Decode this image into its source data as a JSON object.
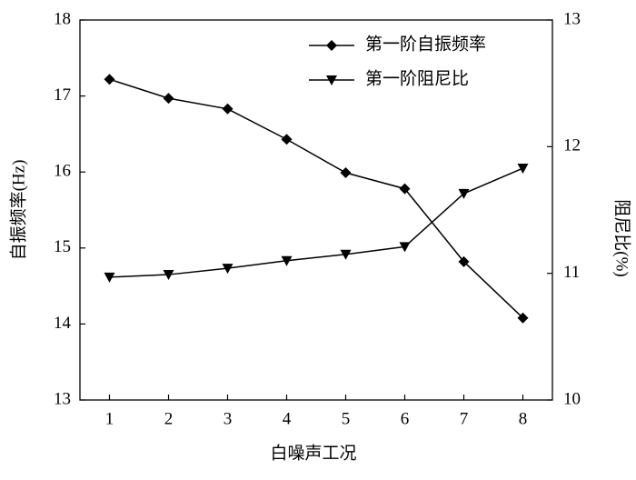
{
  "chart_data": {
    "type": "line",
    "x_label": "白噪声工况",
    "y_label": "自振频率(Hz)",
    "y2_label": "阻尼比(%)",
    "x": [
      1,
      2,
      3,
      4,
      5,
      6,
      7,
      8
    ],
    "xlim": [
      0.5,
      8.5
    ],
    "xticks": [
      1,
      2,
      3,
      4,
      5,
      6,
      7,
      8
    ],
    "ylim": [
      13,
      18
    ],
    "yticks": [
      13,
      14,
      15,
      16,
      17,
      18
    ],
    "y2lim": [
      10,
      13
    ],
    "y2ticks": [
      10,
      11,
      12,
      13
    ],
    "legend": "top-right",
    "series": [
      {
        "name": "第一阶自振频率",
        "color": "#000000",
        "marker": "diamond",
        "values": [
          17.22,
          16.97,
          16.83,
          16.43,
          15.99,
          15.78,
          14.82,
          14.08
        ]
      },
      {
        "name": "第一阶阻尼比",
        "color": "#000000",
        "marker": "triangle-down",
        "axis": "y2",
        "values": [
          10.97,
          10.99,
          11.04,
          11.1,
          11.15,
          11.21,
          11.63,
          11.83
        ]
      }
    ]
  }
}
